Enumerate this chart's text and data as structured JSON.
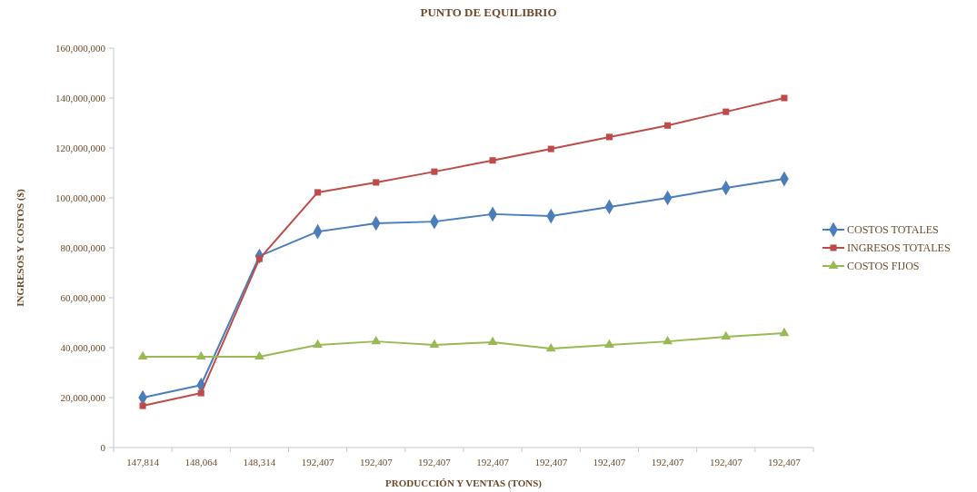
{
  "chart_data": {
    "type": "line",
    "title": "PUNTO DE EQUILIBRIO",
    "xlabel": "PRODUCCIÓN Y VENTAS (TONS)",
    "ylabel": "INGRESOS Y COSTOS ($)",
    "categories": [
      "147,814",
      "148,064",
      "148,314",
      "192,407",
      "192,407",
      "192,407",
      "192,407",
      "192,407",
      "192,407",
      "192,407",
      "192,407",
      "192,407"
    ],
    "ylim": [
      0,
      160000000
    ],
    "yticks": [
      {
        "value": 0,
        "label": "0"
      },
      {
        "value": 20000000,
        "label": "20,000,000"
      },
      {
        "value": 40000000,
        "label": "40,000,000"
      },
      {
        "value": 60000000,
        "label": "60,000,000"
      },
      {
        "value": 80000000,
        "label": "80,000,000"
      },
      {
        "value": 100000000,
        "label": "100,000,000"
      },
      {
        "value": 120000000,
        "label": "120,000,000"
      },
      {
        "value": 140000000,
        "label": "140,000,000"
      },
      {
        "value": 160000000,
        "label": "160,000,000"
      }
    ],
    "grid": false,
    "legend": "right",
    "series": [
      {
        "name": "COSTOS TOTALES",
        "color": "#4a7ebb",
        "marker": "diamond",
        "values": [
          20000000,
          25000000,
          76700000,
          86500000,
          89800000,
          90500000,
          93500000,
          92700000,
          96400000,
          100000000,
          104000000,
          107600000
        ]
      },
      {
        "name": "INGRESOS TOTALES",
        "color": "#be4b48",
        "marker": "square",
        "values": [
          16700000,
          21800000,
          75600000,
          102200000,
          106200000,
          110500000,
          115000000,
          119600000,
          124400000,
          129000000,
          134500000,
          140000000
        ]
      },
      {
        "name": "COSTOS FIJOS",
        "color": "#98b954",
        "marker": "triangle",
        "values": [
          36400000,
          36400000,
          36400000,
          41100000,
          42500000,
          41100000,
          42200000,
          39600000,
          41100000,
          42500000,
          44400000,
          45800000
        ]
      }
    ]
  }
}
